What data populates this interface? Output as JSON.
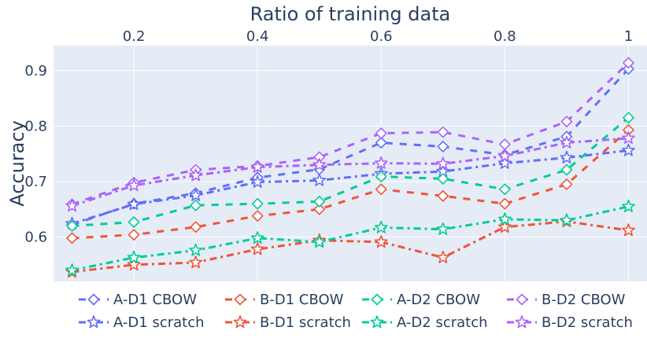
{
  "chart_data": {
    "type": "line",
    "title": "",
    "xlabel": "Ratio of training data",
    "ylabel": "Accuracy",
    "x_axis_position": "top",
    "x": [
      0.1,
      0.2,
      0.3,
      0.4,
      0.5,
      0.6,
      0.7,
      0.8,
      0.9,
      1.0
    ],
    "xlim": [
      0.07,
      1.03
    ],
    "ylim": [
      0.52,
      0.945
    ],
    "x_ticks": [
      0.2,
      0.4,
      0.6,
      0.8,
      1.0
    ],
    "x_tick_labels": [
      "0.2",
      "0.4",
      "0.6",
      "0.8",
      "1"
    ],
    "y_ticks": [
      0.6,
      0.7,
      0.8,
      0.9
    ],
    "y_tick_labels": [
      "0.6",
      "0.7",
      "0.8",
      "0.9"
    ],
    "grid": true,
    "legend_position": "bottom",
    "plot_background": "#e5ecf6",
    "series": [
      {
        "name": "A-D1 CBOW",
        "color": "#636efa",
        "dash": "dash",
        "marker": "diamond",
        "values": [
          0.622,
          0.66,
          0.679,
          0.707,
          0.722,
          0.77,
          0.763,
          0.748,
          0.781,
          0.903
        ]
      },
      {
        "name": "A-D1 scratch",
        "color": "#636efa",
        "dash": "dashdot",
        "marker": "star",
        "values": [
          0.624,
          0.659,
          0.675,
          0.699,
          0.702,
          0.714,
          0.718,
          0.733,
          0.743,
          0.756
        ]
      },
      {
        "name": "B-D1 CBOW",
        "color": "#ef553b",
        "dash": "dash",
        "marker": "diamond",
        "values": [
          0.598,
          0.604,
          0.618,
          0.638,
          0.65,
          0.686,
          0.674,
          0.66,
          0.695,
          0.793
        ]
      },
      {
        "name": "B-D1 scratch",
        "color": "#ef553b",
        "dash": "dashdot",
        "marker": "star",
        "values": [
          0.537,
          0.55,
          0.554,
          0.578,
          0.594,
          0.591,
          0.563,
          0.618,
          0.628,
          0.612
        ]
      },
      {
        "name": "A-D2 CBOW",
        "color": "#00cc96",
        "dash": "dash",
        "marker": "diamond",
        "values": [
          0.62,
          0.627,
          0.657,
          0.66,
          0.664,
          0.709,
          0.705,
          0.686,
          0.721,
          0.815
        ]
      },
      {
        "name": "A-D2 scratch",
        "color": "#00cc96",
        "dash": "dashdot",
        "marker": "star",
        "values": [
          0.54,
          0.563,
          0.576,
          0.598,
          0.591,
          0.617,
          0.614,
          0.632,
          0.63,
          0.655
        ]
      },
      {
        "name": "B-D2 CBOW",
        "color": "#ab63fa",
        "dash": "dash",
        "marker": "diamond",
        "values": [
          0.659,
          0.698,
          0.721,
          0.728,
          0.744,
          0.787,
          0.789,
          0.767,
          0.808,
          0.914
        ]
      },
      {
        "name": "B-D2 scratch",
        "color": "#ab63fa",
        "dash": "dashdot",
        "marker": "star",
        "values": [
          0.656,
          0.693,
          0.711,
          0.726,
          0.73,
          0.733,
          0.732,
          0.746,
          0.77,
          0.778
        ]
      }
    ]
  }
}
